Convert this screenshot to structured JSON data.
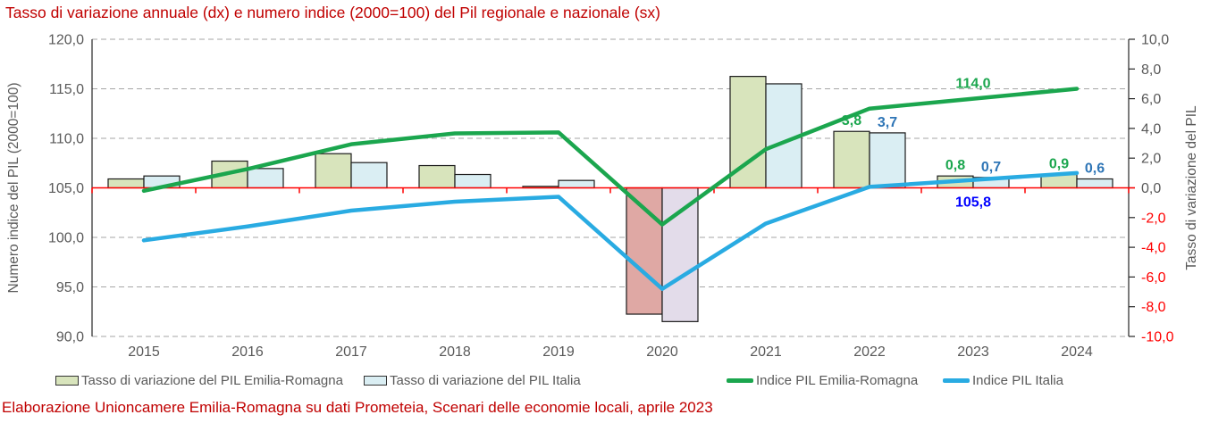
{
  "title": "Tasso di variazione annuale (dx) e numero indice (2000=100) del Pil regionale e nazionale (sx)",
  "caption": "Elaborazione Unioncamere Emilia-Romagna su dati Prometeia, Scenari delle economie locali, aprile 2023",
  "colors": {
    "title_red": "#c00000",
    "zero_line_red": "#ff0000",
    "negative_tick_red": "#ff0000",
    "tick_gray": "#595959",
    "gridline_gray": "#a6a6a6",
    "axis_black": "#262626",
    "bar_border": "#1a1a1a",
    "er_bar_fill": "#d8e4bc",
    "er_bar_negative_fill": "#dfa8a4",
    "it_bar_fill": "#daeef3",
    "it_bar_negative_fill": "#e3dcea",
    "er_line_green": "#1ba64e",
    "it_line_blue": "#29abe2",
    "er_label_green": "#1ba64e",
    "it_label_blue": "#2e75b6",
    "it_index_label_blue": "#0000ff"
  },
  "chart_data": {
    "type": "combo (clustered bar + line, dual axis)",
    "categories": [
      "2015",
      "2016",
      "2017",
      "2018",
      "2019",
      "2020",
      "2021",
      "2022",
      "2023",
      "2024"
    ],
    "left_axis": {
      "title": "Numero indice del PIL (2000=100)",
      "min": 90,
      "max": 120,
      "step": 5
    },
    "right_axis": {
      "title": "Tasso di variazione del PIL",
      "min": -10,
      "max": 10,
      "step": 2
    },
    "zero_line_left_value": 105,
    "grid": "horizontal dashed",
    "legend_position": "bottom",
    "series": [
      {
        "key": "er_rate",
        "name": "Tasso di variazione del PIL Emilia-Romagna",
        "type": "bar",
        "axis": "right",
        "fill": "#d8e4bc",
        "negative_fill": "#dfa8a4",
        "label_color": "#1ba64e",
        "values": [
          0.6,
          1.8,
          2.3,
          1.5,
          0.1,
          -8.5,
          7.5,
          3.8,
          0.8,
          0.9
        ],
        "labels": {
          "2022": "3,8",
          "2023": "0,8",
          "2024": "0,9"
        }
      },
      {
        "key": "it_rate",
        "name": "Tasso di variazione del PIL Italia",
        "type": "bar",
        "axis": "right",
        "fill": "#daeef3",
        "negative_fill": "#e3dcea",
        "label_color": "#2e75b6",
        "values": [
          0.8,
          1.3,
          1.7,
          0.9,
          0.5,
          -9.0,
          7.0,
          3.7,
          0.7,
          0.6
        ],
        "labels": {
          "2022": "3,7",
          "2023": "0,7",
          "2024": "0,6"
        }
      },
      {
        "key": "er_index",
        "name": "Indice PIL Emilia-Romagna",
        "type": "line",
        "axis": "left",
        "color": "#1ba64e",
        "label_color": "#1ba64e",
        "values": [
          104.7,
          106.9,
          109.4,
          110.5,
          110.6,
          101.3,
          108.9,
          113.0,
          114.0,
          115.0
        ],
        "labels": {
          "2023": "114,0"
        }
      },
      {
        "key": "it_index",
        "name": "Indice PIL Italia",
        "type": "line",
        "axis": "left",
        "color": "#29abe2",
        "label_color": "#0000ff",
        "values": [
          99.7,
          101.1,
          102.7,
          103.6,
          104.1,
          94.8,
          101.4,
          105.1,
          105.8,
          106.5
        ],
        "labels": {
          "2023": "105,8"
        }
      }
    ]
  },
  "legend": {
    "items": [
      {
        "swatch": "er-bar-swatch"
      },
      {
        "swatch": "it-bar-swatch"
      },
      {
        "swatch": "er-line-swatch"
      },
      {
        "swatch": "it-line-swatch"
      }
    ]
  }
}
